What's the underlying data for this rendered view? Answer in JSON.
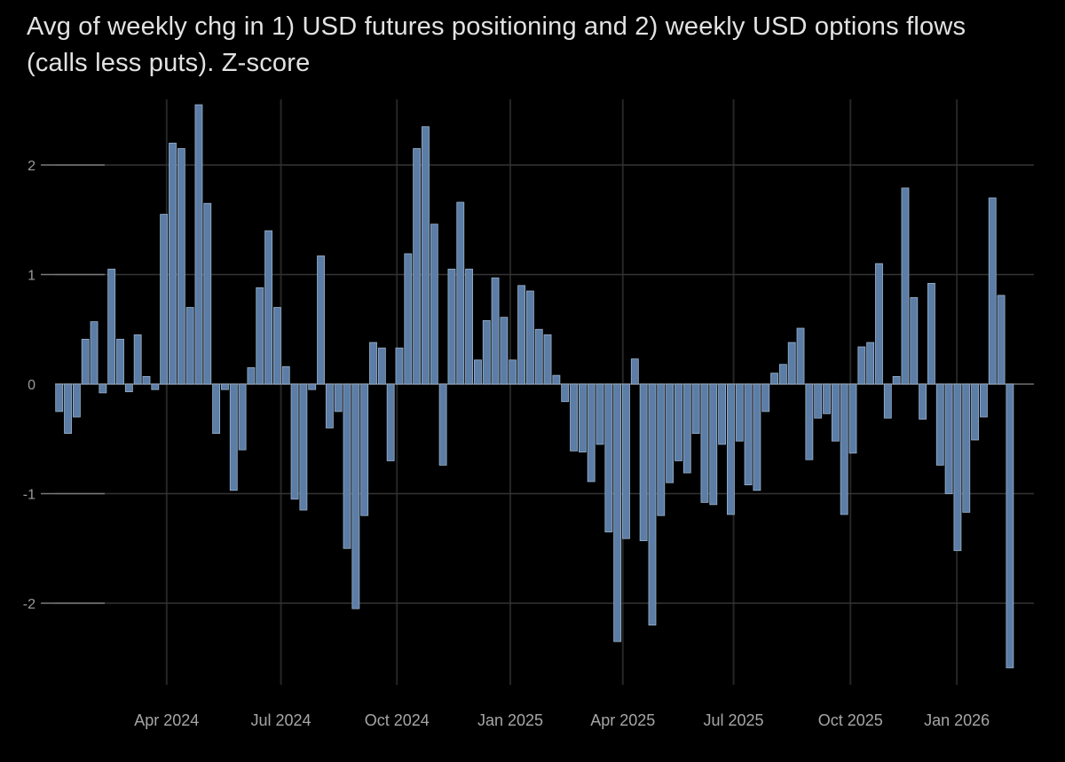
{
  "title": {
    "line1": "Avg of weekly chg in 1) USD futures positioning and 2) weekly USD options flows",
    "line2": "(calls less puts). Z-score"
  },
  "chart_data": {
    "type": "bar",
    "title": "Avg of weekly chg in 1) USD futures positioning and 2) weekly USD options flows (calls less puts). Z-score",
    "ylabel": "Z-score",
    "grid": true,
    "ylim": [
      -2.8,
      2.7
    ],
    "y_ticks": [
      2,
      1,
      0,
      -1,
      -2
    ],
    "x_ticks": [
      {
        "label": "Apr 2024",
        "index": 12.8
      },
      {
        "label": "Jul 2024",
        "index": 25.9
      },
      {
        "label": "Oct 2024",
        "index": 39.2
      },
      {
        "label": "Jan 2025",
        "index": 52.2
      },
      {
        "label": "Apr 2025",
        "index": 65.1
      },
      {
        "label": "Jul 2025",
        "index": 77.8
      },
      {
        "label": "Oct 2025",
        "index": 91.2
      },
      {
        "label": "Jan 2026",
        "index": 103.4
      }
    ],
    "values": [
      -0.25,
      -0.45,
      -0.3,
      0.41,
      0.57,
      -0.08,
      1.05,
      0.41,
      -0.07,
      0.45,
      0.07,
      -0.05,
      1.55,
      2.2,
      2.15,
      0.7,
      2.55,
      1.65,
      -0.45,
      -0.05,
      -0.97,
      -0.6,
      0.15,
      0.88,
      1.4,
      0.7,
      0.16,
      -1.05,
      -1.15,
      -0.05,
      1.17,
      -0.4,
      -0.25,
      -1.5,
      -2.05,
      -1.2,
      0.38,
      0.33,
      -0.7,
      0.33,
      1.19,
      2.15,
      2.35,
      1.46,
      -0.74,
      1.05,
      1.66,
      1.05,
      0.22,
      0.58,
      0.97,
      0.61,
      0.22,
      0.9,
      0.85,
      0.5,
      0.45,
      0.08,
      -0.16,
      -0.61,
      -0.62,
      -0.89,
      -0.55,
      -1.35,
      -2.35,
      -1.41,
      0.23,
      -1.43,
      -2.2,
      -1.2,
      -0.9,
      -0.7,
      -0.81,
      -0.45,
      -1.08,
      -1.1,
      -0.55,
      -1.19,
      -0.52,
      -0.92,
      -0.97,
      -0.25,
      0.1,
      0.18,
      0.38,
      0.51,
      -0.69,
      -0.31,
      -0.27,
      -0.52,
      -1.19,
      -0.63,
      0.34,
      0.38,
      1.1,
      -0.31,
      0.07,
      1.79,
      0.79,
      -0.32,
      0.92,
      -0.74,
      -1.0,
      -1.52,
      -1.17,
      -0.51,
      -0.3,
      1.7,
      0.81,
      -2.59
    ],
    "colors": {
      "background": "#000000",
      "bar_fill": "#5b7da6",
      "bar_edge": "#9cb2cb",
      "grid_line": "#343434",
      "grid_stub": "#7a7a7a",
      "zero_line": "#6f6f6f",
      "title_text": "#e2e2e2",
      "y_tick_text": "#9a9a9a",
      "x_tick_text": "#a6a6a6"
    }
  }
}
